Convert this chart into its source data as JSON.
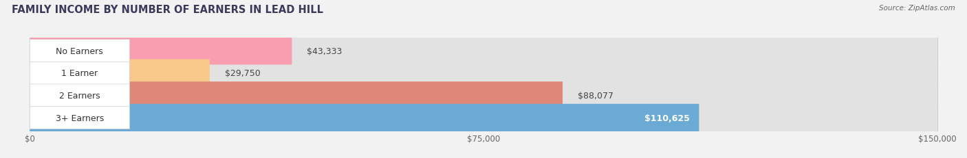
{
  "title": "FAMILY INCOME BY NUMBER OF EARNERS IN LEAD HILL",
  "source": "Source: ZipAtlas.com",
  "categories": [
    "No Earners",
    "1 Earner",
    "2 Earners",
    "3+ Earners"
  ],
  "values": [
    43333,
    29750,
    88077,
    110625
  ],
  "bar_colors": [
    "#f89eb0",
    "#f8c98a",
    "#e08878",
    "#6aaad4"
  ],
  "label_colors": [
    "#333333",
    "#333333",
    "#333333",
    "#ffffff"
  ],
  "x_max": 150000,
  "x_ticks": [
    0,
    75000,
    150000
  ],
  "x_tick_labels": [
    "$0",
    "$75,000",
    "$150,000"
  ],
  "value_labels": [
    "$43,333",
    "$29,750",
    "$88,077",
    "$110,625"
  ],
  "bg_color": "#f2f2f2",
  "bar_bg_color": "#e2e2e2",
  "bar_height": 0.62,
  "title_fontsize": 10.5,
  "label_fontsize": 9,
  "value_fontsize": 9
}
